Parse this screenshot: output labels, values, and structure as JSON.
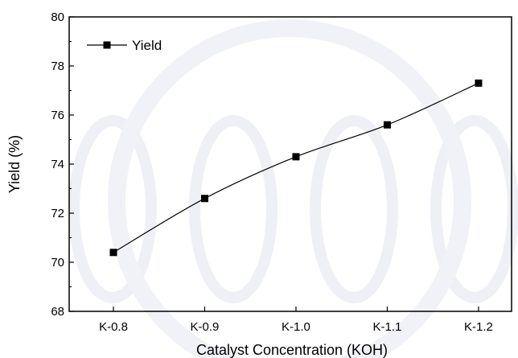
{
  "chart_data": {
    "type": "line",
    "categories": [
      "K-0.8",
      "K-0.9",
      "K-1.0",
      "K-1.1",
      "K-1.2"
    ],
    "series": [
      {
        "name": "Yield",
        "values": [
          70.4,
          72.6,
          74.3,
          75.6,
          77.3
        ]
      }
    ],
    "xlabel": "Catalyst Concentration (KOH)",
    "ylabel": "Yield (%)",
    "ylim": [
      68,
      80
    ],
    "yticks": [
      68,
      70,
      72,
      74,
      76,
      78,
      80
    ],
    "grid": false,
    "legend_position": "top-left",
    "line_color": "#000000",
    "marker": "square"
  }
}
